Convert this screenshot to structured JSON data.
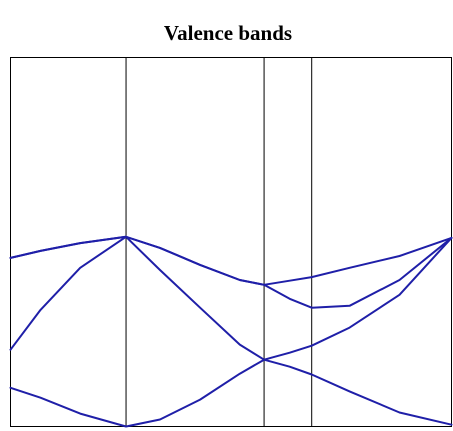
{
  "chart_data": {
    "type": "line",
    "title": "Valence bands",
    "x": [
      0,
      6.8,
      15.8,
      26.2,
      33.9,
      43.0,
      52.0,
      57.5,
      63.3,
      68.3,
      76.9,
      88.2,
      100
    ],
    "xlim": [
      0,
      100
    ],
    "ylim": [
      0,
      100
    ],
    "vlines": [
      26.2,
      57.5,
      68.3
    ],
    "series": [
      {
        "color": "#1f1fa8",
        "values": [
          45.7,
          47.6,
          49.7,
          51.4,
          48.4,
          43.8,
          39.7,
          38.4,
          39.5,
          40.5,
          43.0,
          46.2,
          51.1
        ]
      },
      {
        "color": "#1f1fa8",
        "values": [
          45.7,
          47.6,
          49.7,
          51.4,
          48.4,
          43.8,
          39.7,
          38.4,
          34.6,
          32.2,
          32.7,
          39.7,
          51.1
        ]
      },
      {
        "color": "#1f1fa8",
        "values": [
          20.8,
          31.6,
          43.0,
          51.4,
          42.4,
          32.2,
          22.2,
          18.1,
          20.0,
          21.9,
          26.8,
          35.7,
          51.1
        ]
      },
      {
        "color": "#1f1fa8",
        "values": [
          10.5,
          7.8,
          3.5,
          0,
          1.9,
          7.3,
          14.3,
          18.1,
          16.2,
          14.1,
          9.5,
          3.8,
          0.5
        ]
      }
    ]
  }
}
